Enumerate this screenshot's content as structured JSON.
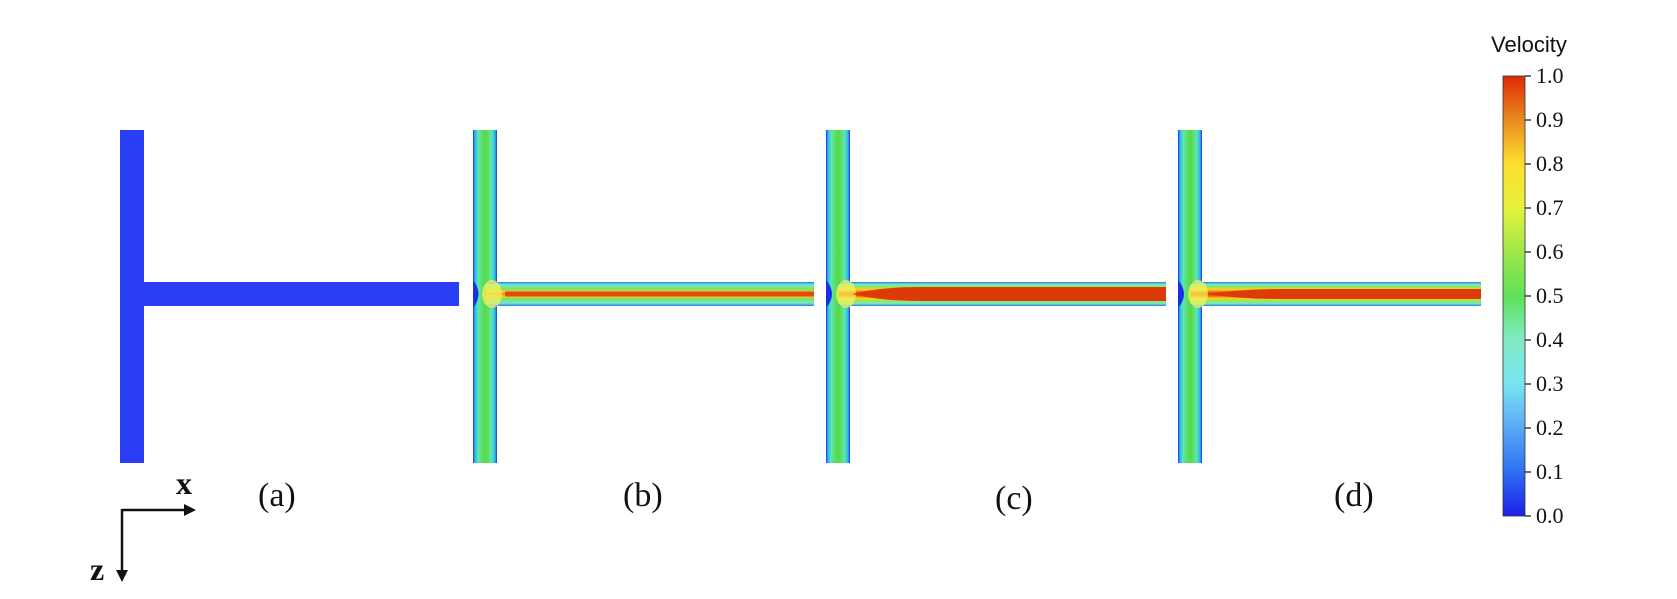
{
  "panels": [
    {
      "label": "(a)"
    },
    {
      "label": "(b)"
    },
    {
      "label": "(c)"
    },
    {
      "label": "(d)"
    }
  ],
  "axes": {
    "horizontal": "x",
    "vertical": "z"
  },
  "colorbar": {
    "title": "Velocity",
    "ticks": [
      "1.0",
      "0.9",
      "0.8",
      "0.7",
      "0.6",
      "0.5",
      "0.4",
      "0.3",
      "0.2",
      "0.1",
      "0.0"
    ],
    "range": [
      0.0,
      1.0
    ],
    "scale": "jet"
  },
  "colors": {
    "uniform": "#2a3ff5",
    "wall": "#2450d8",
    "low": "#1b2fe8",
    "mid": "#4fe05a",
    "core": "#e2460f",
    "core_max": "#dd2a06"
  }
}
